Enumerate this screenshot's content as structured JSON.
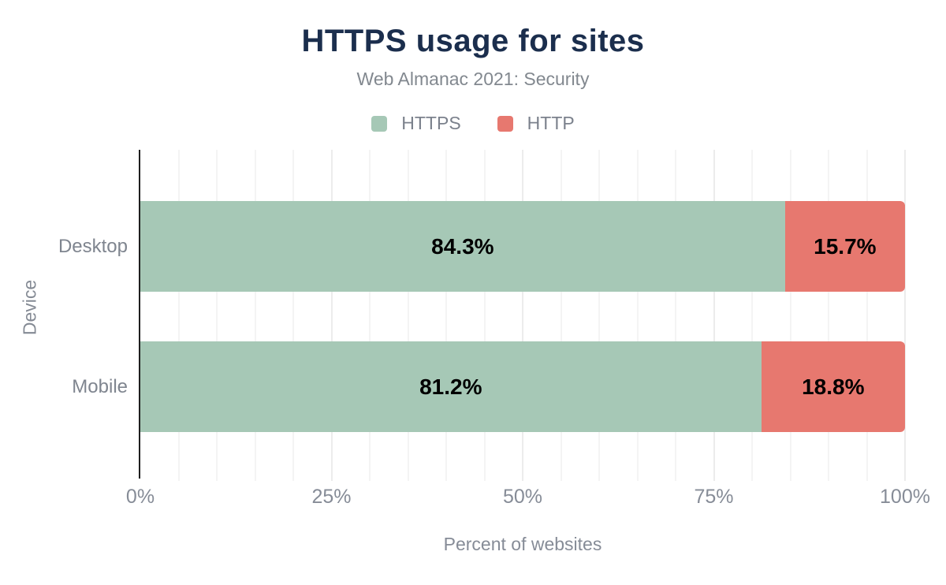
{
  "chart_data": {
    "type": "bar",
    "orientation": "horizontal",
    "stacked": true,
    "title": "HTTPS usage for sites",
    "subtitle": "Web Almanac 2021: Security",
    "categories": [
      "Desktop",
      "Mobile"
    ],
    "series": [
      {
        "name": "HTTPS",
        "color": "#a6c8b6",
        "values": [
          84.3,
          81.2
        ],
        "labels": [
          "84.3%",
          "81.2%"
        ]
      },
      {
        "name": "HTTP",
        "color": "#e7786f",
        "values": [
          15.7,
          18.8
        ],
        "labels": [
          "15.7%",
          "18.8%"
        ]
      }
    ],
    "xlabel": "Percent of websites",
    "ylabel": "Device",
    "xlim": [
      0,
      100
    ],
    "x_ticks": [
      {
        "value": 0,
        "label": "0%"
      },
      {
        "value": 25,
        "label": "25%"
      },
      {
        "value": 50,
        "label": "50%"
      },
      {
        "value": 75,
        "label": "75%"
      },
      {
        "value": 100,
        "label": "100%"
      }
    ],
    "grid_step": 5,
    "grid": true,
    "legend_position": "top",
    "colors": {
      "title": "#1b2e4d",
      "subtitle": "#82888f",
      "axis_text": "#868c97",
      "value_label": "#000000",
      "axis_line": "#1e1e1e"
    }
  }
}
